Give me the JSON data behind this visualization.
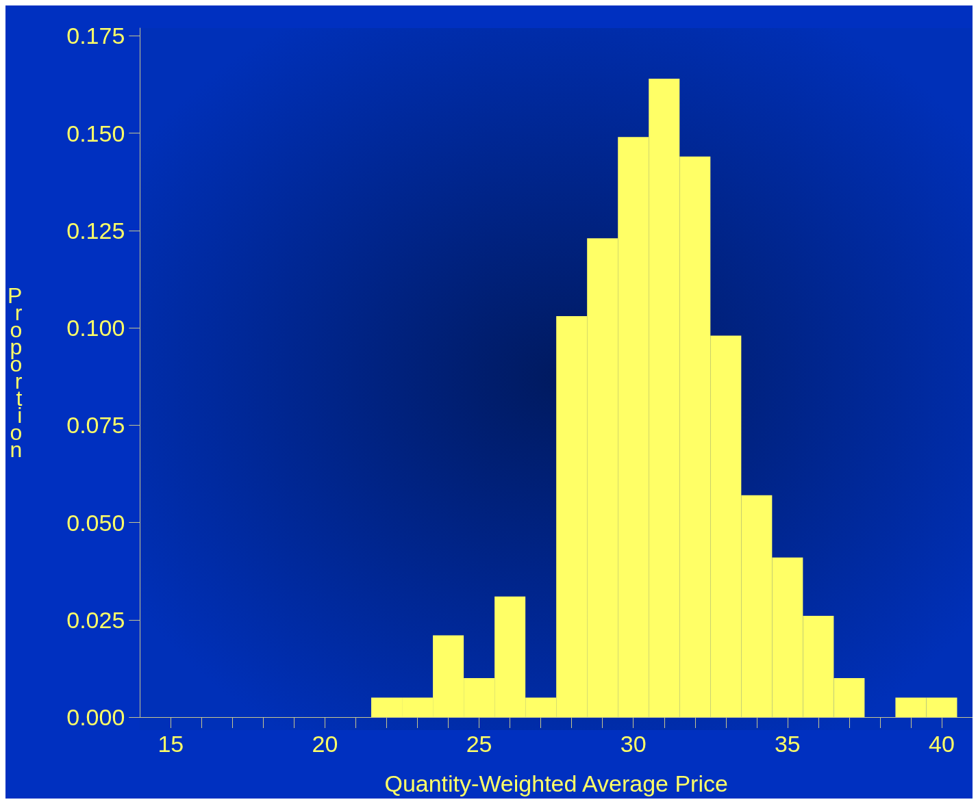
{
  "chart_data": {
    "type": "histogram",
    "xlabel": "Quantity-Weighted Average Price",
    "ylabel": "Proportion",
    "bins": [
      21.5,
      22.5,
      23.5,
      24.5,
      25.5,
      26.5,
      27.5,
      28.5,
      29.5,
      30.5,
      31.5,
      32.5,
      33.5,
      34.5,
      35.5,
      36.5,
      37.5,
      38.5,
      39.5,
      40.5
    ],
    "values": [
      0.005,
      0.005,
      0.021,
      0.01,
      0.031,
      0.005,
      0.103,
      0.123,
      0.149,
      0.164,
      0.144,
      0.098,
      0.057,
      0.041,
      0.026,
      0.01,
      0,
      0.005,
      0.005
    ],
    "color": "#ffff66",
    "xlim": [
      14,
      41
    ],
    "xticks": [
      15,
      {
        "value": 16,
        "label": null
      },
      {
        "value": 17,
        "label": null
      },
      {
        "value": 18,
        "label": null
      },
      {
        "value": 19,
        "label": null
      },
      20,
      {
        "value": 21,
        "label": null
      },
      {
        "value": 22,
        "label": null
      },
      {
        "value": 23,
        "label": null
      },
      {
        "value": 24,
        "label": null
      },
      25,
      {
        "value": 26,
        "label": null
      },
      {
        "value": 27,
        "label": null
      },
      {
        "value": 28,
        "label": null
      },
      {
        "value": 29,
        "label": null
      },
      30,
      {
        "value": 31,
        "label": null
      },
      {
        "value": 32,
        "label": null
      },
      {
        "value": 33,
        "label": null
      },
      {
        "value": 34,
        "label": null
      },
      35,
      {
        "value": 36,
        "label": null
      },
      {
        "value": 37,
        "label": null
      },
      {
        "value": 38,
        "label": null
      },
      {
        "value": 39,
        "label": null
      },
      40
    ],
    "ylim": [
      0,
      0.177
    ],
    "yticks": [
      {
        "value": 0,
        "label": "0.000"
      },
      {
        "value": 0.025,
        "label": "0.025"
      },
      {
        "value": 0.05,
        "label": "0.050"
      },
      {
        "value": 0.075,
        "label": "0.075"
      },
      {
        "value": 0.1,
        "label": "0.100"
      },
      {
        "value": 0.125,
        "label": "0.125"
      },
      {
        "value": 0.15,
        "label": "0.150"
      },
      {
        "value": 0.175,
        "label": "0.175"
      }
    ],
    "grid": false
  }
}
